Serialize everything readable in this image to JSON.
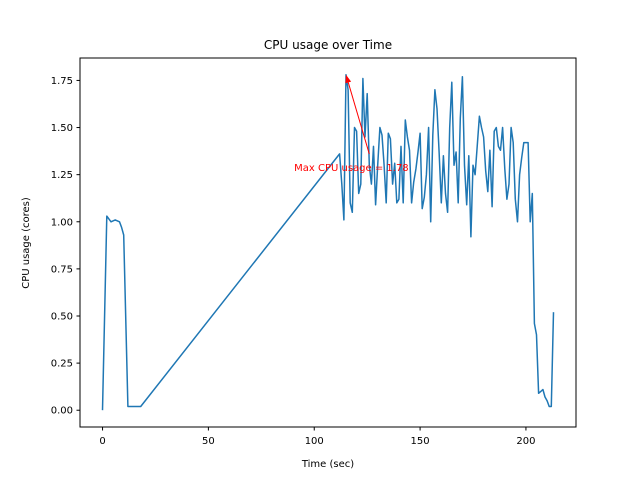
{
  "chart_data": {
    "type": "line",
    "title": "CPU usage over Time",
    "xlabel": "Time (sec)",
    "ylabel": "CPU usage (cores)",
    "xlim": [
      -10.65,
      223.65
    ],
    "ylim": [
      -0.089,
      1.869
    ],
    "xticks": [
      0,
      50,
      100,
      150,
      200
    ],
    "xtick_labels": [
      "0",
      "50",
      "100",
      "150",
      "200"
    ],
    "yticks": [
      0.0,
      0.25,
      0.5,
      0.75,
      1.0,
      1.25,
      1.5,
      1.75
    ],
    "ytick_labels": [
      "0.00",
      "0.25",
      "0.50",
      "0.75",
      "1.00",
      "1.25",
      "1.50",
      "1.75"
    ],
    "grid": false,
    "series": [
      {
        "color": "#1f77b4",
        "x": [
          0,
          2,
          4,
          6,
          8,
          9,
          10,
          12,
          14,
          16,
          18,
          112,
          113,
          114,
          115,
          116,
          117,
          118,
          119,
          120,
          121,
          122,
          123,
          124,
          125,
          126,
          127,
          128,
          129,
          130,
          131,
          132,
          133,
          134,
          135,
          136,
          137,
          138,
          139,
          140,
          141,
          142,
          143,
          144,
          145,
          146,
          147,
          148,
          149,
          150,
          151,
          152,
          153,
          154,
          155,
          156,
          157,
          158,
          159,
          160,
          161,
          162,
          163,
          164,
          165,
          166,
          167,
          168,
          169,
          170,
          171,
          172,
          173,
          174,
          175,
          176,
          177,
          178,
          179,
          180,
          181,
          182,
          183,
          184,
          185,
          186,
          187,
          188,
          189,
          190,
          191,
          192,
          193,
          194,
          195,
          196,
          197,
          198,
          199,
          200,
          201,
          202,
          203,
          204,
          205,
          206,
          207,
          208,
          209,
          210,
          211,
          212,
          213
        ],
        "y": [
          0.0,
          1.03,
          1.0,
          1.01,
          1.0,
          0.97,
          0.93,
          0.02,
          0.02,
          0.02,
          0.02,
          1.36,
          1.2,
          1.01,
          1.78,
          1.7,
          1.1,
          1.05,
          1.5,
          1.48,
          1.15,
          1.2,
          1.76,
          1.45,
          1.68,
          1.3,
          1.2,
          1.4,
          1.09,
          1.3,
          1.5,
          1.46,
          1.3,
          1.1,
          1.47,
          1.44,
          1.2,
          1.31,
          1.1,
          1.12,
          1.4,
          1.1,
          1.54,
          1.45,
          1.38,
          1.1,
          1.21,
          1.28,
          1.37,
          1.47,
          1.07,
          1.13,
          1.25,
          1.5,
          1.0,
          1.46,
          1.7,
          1.6,
          1.37,
          1.1,
          1.35,
          1.15,
          1.05,
          1.5,
          1.74,
          1.3,
          1.37,
          1.1,
          1.55,
          1.77,
          1.3,
          1.09,
          1.35,
          0.92,
          1.3,
          1.25,
          1.4,
          1.56,
          1.5,
          1.45,
          1.27,
          1.16,
          1.38,
          1.08,
          1.48,
          1.5,
          1.4,
          1.38,
          1.5,
          1.28,
          1.12,
          1.2,
          1.5,
          1.42,
          1.12,
          1.0,
          1.25,
          1.34,
          1.42,
          1.42,
          1.42,
          1.0,
          1.15,
          0.46,
          0.4,
          0.09,
          0.1,
          0.11,
          0.07,
          0.05,
          0.02,
          0.02,
          0.52
        ]
      }
    ],
    "annotation": {
      "text": "Max CPU usage = 1.78",
      "color": "#ff0000",
      "point": [
        115,
        1.78
      ],
      "text_anchor_point": [
        90.5,
        1.27
      ]
    }
  }
}
